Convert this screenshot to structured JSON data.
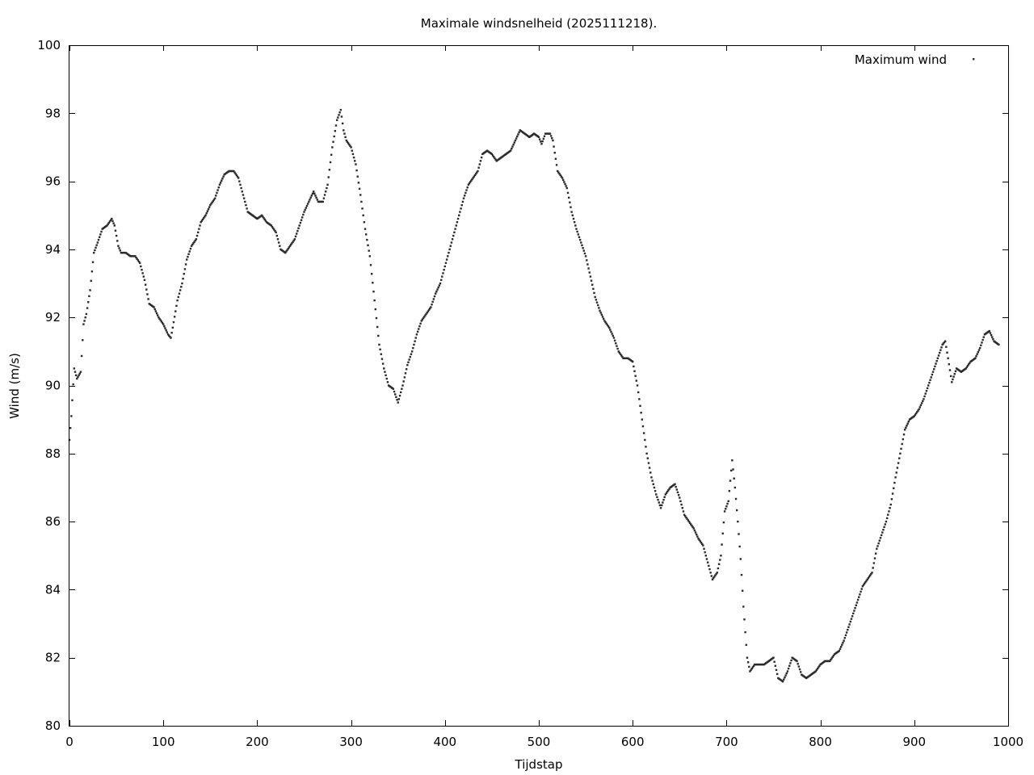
{
  "chart_data": {
    "type": "scatter",
    "title": "Maximale windsnelheid (2025111218).",
    "xlabel": "Tijdstap",
    "ylabel": "Wind (m/s)",
    "xlim": [
      0,
      1000
    ],
    "ylim": [
      80,
      100
    ],
    "xticks": [
      0,
      100,
      200,
      300,
      400,
      500,
      600,
      700,
      800,
      900,
      1000
    ],
    "yticks": [
      80,
      82,
      84,
      86,
      88,
      90,
      92,
      94,
      96,
      98,
      100
    ],
    "xtick_labels": [
      "0",
      "100",
      "200",
      "300",
      "400",
      "500",
      "600",
      "700",
      "800",
      "900",
      "1000"
    ],
    "ytick_labels": [
      "80",
      "82",
      "84",
      "86",
      "88",
      "90",
      "92",
      "94",
      "96",
      "98",
      "100"
    ],
    "grid": false,
    "legend": {
      "position": "top-right",
      "entries": [
        "Maximum wind"
      ]
    },
    "point_color": "#2a2a2a",
    "series": [
      {
        "name": "Maximum wind",
        "anchors": [
          [
            0,
            88.4
          ],
          [
            2,
            89.1
          ],
          [
            5,
            90.5
          ],
          [
            8,
            90.2
          ],
          [
            12,
            90.4
          ],
          [
            15,
            91.8
          ],
          [
            18,
            92.1
          ],
          [
            22,
            92.8
          ],
          [
            26,
            93.9
          ],
          [
            30,
            94.2
          ],
          [
            35,
            94.6
          ],
          [
            40,
            94.7
          ],
          [
            45,
            94.9
          ],
          [
            48,
            94.7
          ],
          [
            52,
            94.1
          ],
          [
            55,
            93.9
          ],
          [
            60,
            93.9
          ],
          [
            65,
            93.8
          ],
          [
            70,
            93.8
          ],
          [
            75,
            93.6
          ],
          [
            80,
            93.1
          ],
          [
            85,
            92.4
          ],
          [
            90,
            92.3
          ],
          [
            95,
            92.0
          ],
          [
            100,
            91.8
          ],
          [
            105,
            91.5
          ],
          [
            108,
            91.4
          ],
          [
            110,
            91.7
          ],
          [
            115,
            92.5
          ],
          [
            120,
            93.0
          ],
          [
            125,
            93.7
          ],
          [
            130,
            94.1
          ],
          [
            135,
            94.3
          ],
          [
            140,
            94.8
          ],
          [
            145,
            95.0
          ],
          [
            150,
            95.3
          ],
          [
            155,
            95.5
          ],
          [
            160,
            95.9
          ],
          [
            165,
            96.2
          ],
          [
            170,
            96.3
          ],
          [
            175,
            96.3
          ],
          [
            180,
            96.1
          ],
          [
            185,
            95.6
          ],
          [
            190,
            95.1
          ],
          [
            195,
            95.0
          ],
          [
            200,
            94.9
          ],
          [
            205,
            95.0
          ],
          [
            210,
            94.8
          ],
          [
            215,
            94.7
          ],
          [
            220,
            94.5
          ],
          [
            225,
            94.0
          ],
          [
            230,
            93.9
          ],
          [
            235,
            94.1
          ],
          [
            240,
            94.3
          ],
          [
            245,
            94.7
          ],
          [
            250,
            95.1
          ],
          [
            255,
            95.4
          ],
          [
            260,
            95.7
          ],
          [
            265,
            95.4
          ],
          [
            270,
            95.4
          ],
          [
            275,
            95.9
          ],
          [
            280,
            97.0
          ],
          [
            285,
            97.8
          ],
          [
            289,
            98.1
          ],
          [
            292,
            97.5
          ],
          [
            295,
            97.2
          ],
          [
            300,
            97.0
          ],
          [
            305,
            96.5
          ],
          [
            310,
            95.6
          ],
          [
            315,
            94.6
          ],
          [
            320,
            93.8
          ],
          [
            325,
            92.5
          ],
          [
            330,
            91.2
          ],
          [
            335,
            90.5
          ],
          [
            340,
            90.0
          ],
          [
            345,
            89.9
          ],
          [
            350,
            89.5
          ],
          [
            355,
            90.0
          ],
          [
            360,
            90.6
          ],
          [
            365,
            91.0
          ],
          [
            370,
            91.5
          ],
          [
            375,
            91.9
          ],
          [
            380,
            92.1
          ],
          [
            385,
            92.3
          ],
          [
            390,
            92.7
          ],
          [
            395,
            93.0
          ],
          [
            400,
            93.5
          ],
          [
            405,
            94.0
          ],
          [
            410,
            94.5
          ],
          [
            415,
            95.0
          ],
          [
            420,
            95.5
          ],
          [
            425,
            95.9
          ],
          [
            430,
            96.1
          ],
          [
            435,
            96.3
          ],
          [
            440,
            96.8
          ],
          [
            445,
            96.9
          ],
          [
            450,
            96.8
          ],
          [
            455,
            96.6
          ],
          [
            460,
            96.7
          ],
          [
            465,
            96.8
          ],
          [
            470,
            96.9
          ],
          [
            475,
            97.2
          ],
          [
            480,
            97.5
          ],
          [
            485,
            97.4
          ],
          [
            490,
            97.3
          ],
          [
            495,
            97.4
          ],
          [
            500,
            97.3
          ],
          [
            503,
            97.1
          ],
          [
            507,
            97.4
          ],
          [
            512,
            97.4
          ],
          [
            515,
            97.2
          ],
          [
            520,
            96.3
          ],
          [
            525,
            96.1
          ],
          [
            530,
            95.8
          ],
          [
            535,
            95.1
          ],
          [
            540,
            94.6
          ],
          [
            545,
            94.2
          ],
          [
            550,
            93.8
          ],
          [
            555,
            93.2
          ],
          [
            560,
            92.6
          ],
          [
            565,
            92.2
          ],
          [
            570,
            91.9
          ],
          [
            575,
            91.7
          ],
          [
            580,
            91.4
          ],
          [
            585,
            91.0
          ],
          [
            590,
            90.8
          ],
          [
            595,
            90.8
          ],
          [
            600,
            90.7
          ],
          [
            605,
            90.0
          ],
          [
            610,
            89.0
          ],
          [
            615,
            88.0
          ],
          [
            620,
            87.3
          ],
          [
            625,
            86.8
          ],
          [
            630,
            86.4
          ],
          [
            635,
            86.8
          ],
          [
            640,
            87.0
          ],
          [
            645,
            87.1
          ],
          [
            650,
            86.7
          ],
          [
            655,
            86.2
          ],
          [
            660,
            86.0
          ],
          [
            665,
            85.8
          ],
          [
            670,
            85.5
          ],
          [
            675,
            85.3
          ],
          [
            680,
            84.8
          ],
          [
            685,
            84.3
          ],
          [
            690,
            84.5
          ],
          [
            694,
            85.0
          ],
          [
            698,
            86.3
          ],
          [
            702,
            86.6
          ],
          [
            706,
            87.8
          ],
          [
            709,
            87.0
          ],
          [
            712,
            86.0
          ],
          [
            715,
            84.9
          ],
          [
            718,
            83.5
          ],
          [
            722,
            82.0
          ],
          [
            725,
            81.6
          ],
          [
            730,
            81.8
          ],
          [
            735,
            81.8
          ],
          [
            740,
            81.8
          ],
          [
            745,
            81.9
          ],
          [
            750,
            82.0
          ],
          [
            755,
            81.4
          ],
          [
            760,
            81.3
          ],
          [
            765,
            81.6
          ],
          [
            770,
            82.0
          ],
          [
            775,
            81.9
          ],
          [
            780,
            81.5
          ],
          [
            785,
            81.4
          ],
          [
            790,
            81.5
          ],
          [
            795,
            81.6
          ],
          [
            800,
            81.8
          ],
          [
            805,
            81.9
          ],
          [
            810,
            81.9
          ],
          [
            815,
            82.1
          ],
          [
            820,
            82.2
          ],
          [
            825,
            82.5
          ],
          [
            830,
            82.9
          ],
          [
            835,
            83.3
          ],
          [
            840,
            83.7
          ],
          [
            845,
            84.1
          ],
          [
            850,
            84.3
          ],
          [
            855,
            84.5
          ],
          [
            860,
            85.2
          ],
          [
            865,
            85.6
          ],
          [
            870,
            86.0
          ],
          [
            875,
            86.5
          ],
          [
            880,
            87.3
          ],
          [
            885,
            88.0
          ],
          [
            890,
            88.7
          ],
          [
            895,
            89.0
          ],
          [
            900,
            89.1
          ],
          [
            905,
            89.3
          ],
          [
            910,
            89.6
          ],
          [
            915,
            90.0
          ],
          [
            920,
            90.4
          ],
          [
            925,
            90.8
          ],
          [
            930,
            91.2
          ],
          [
            933,
            91.3
          ],
          [
            936,
            90.8
          ],
          [
            940,
            90.1
          ],
          [
            945,
            90.5
          ],
          [
            950,
            90.4
          ],
          [
            955,
            90.5
          ],
          [
            960,
            90.7
          ],
          [
            965,
            90.8
          ],
          [
            970,
            91.1
          ],
          [
            975,
            91.5
          ],
          [
            980,
            91.6
          ],
          [
            985,
            91.3
          ],
          [
            990,
            91.2
          ]
        ]
      }
    ]
  }
}
